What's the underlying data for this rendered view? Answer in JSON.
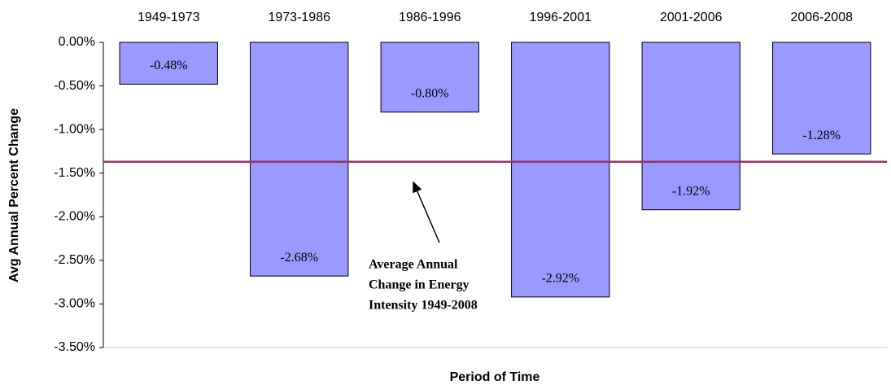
{
  "chart_data": {
    "type": "bar",
    "categories": [
      "1949-1973",
      "1973-1986",
      "1986-1996",
      "1996-2001",
      "2001-2006",
      "2006-2008"
    ],
    "values": [
      -0.48,
      -2.68,
      -0.8,
      -2.92,
      -1.92,
      -1.28
    ],
    "value_labels": [
      "-0.48%",
      "-2.68%",
      "-0.80%",
      "-2.92%",
      "-1.92%",
      "-1.28%"
    ],
    "color": "#9999ff",
    "ylabel": "Avg Annual Percent Change",
    "xlabel": "Period of Time",
    "ylim": [
      -3.5,
      0
    ],
    "yticks": [
      {
        "value": 0,
        "label": "0.00%"
      },
      {
        "value": -0.5,
        "label": "-0.50%"
      },
      {
        "value": -1,
        "label": "-1.00%"
      },
      {
        "value": -1.5,
        "label": "-1.50%"
      },
      {
        "value": -2,
        "label": "-2.00%"
      },
      {
        "value": -2.5,
        "label": "-2.50%"
      },
      {
        "value": -3,
        "label": "-3.00%"
      },
      {
        "value": -3.5,
        "label": "-3.50%"
      }
    ],
    "average_line": {
      "value": -1.37,
      "color": "#993366"
    },
    "annotation": [
      "Average Annual",
      "Change in Energy",
      "Intensity 1949-2008"
    ]
  }
}
